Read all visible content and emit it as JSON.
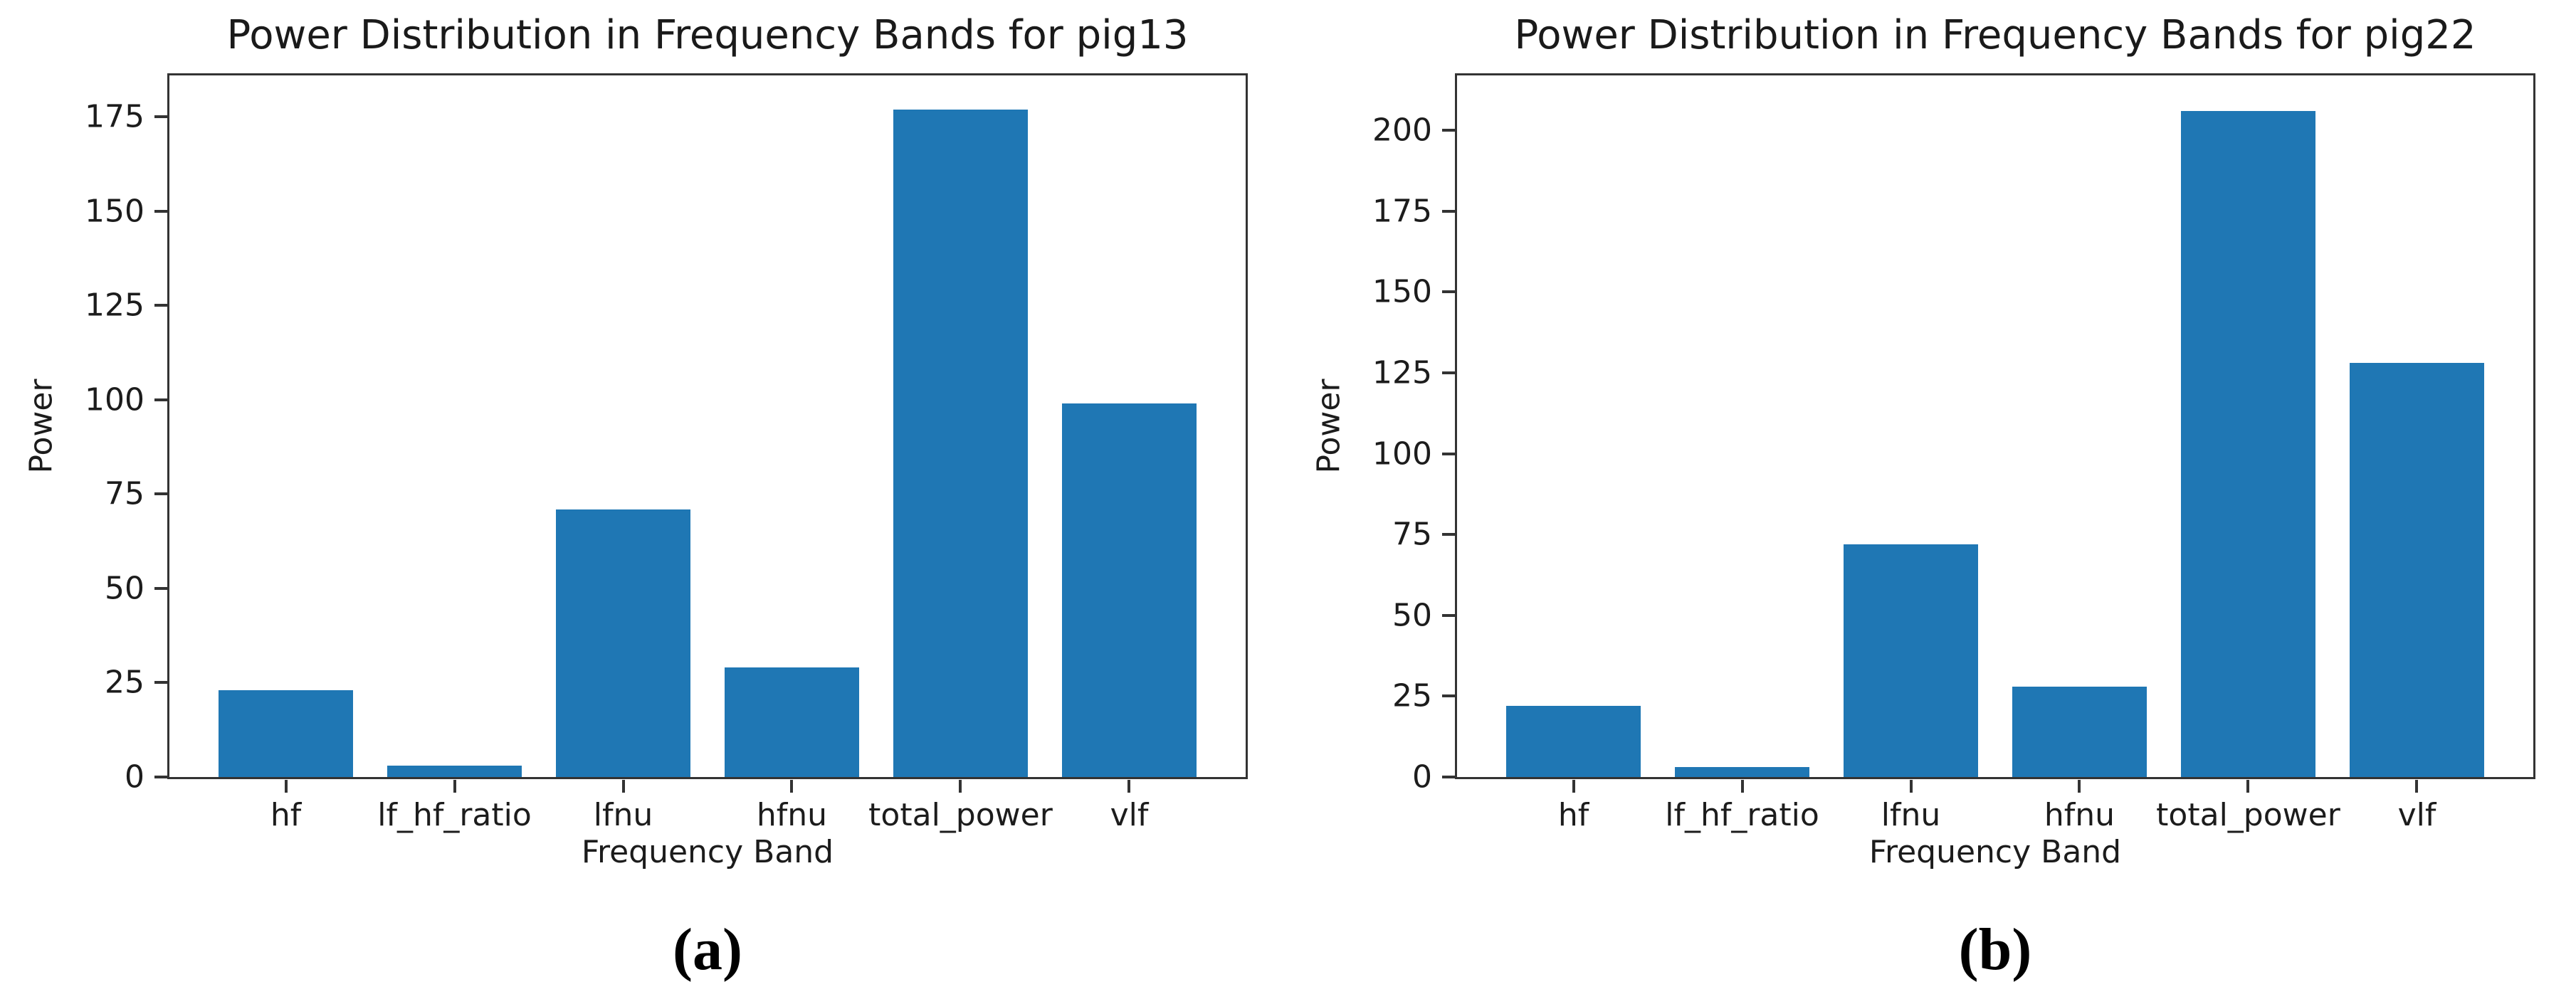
{
  "page": {
    "background": "#ffffff",
    "text_color": "#1c1c1c",
    "axis_color": "#333333"
  },
  "chart_data": [
    {
      "type": "bar",
      "title": "Power Distribution in Frequency Bands for pig13",
      "xlabel": "Frequency Band",
      "ylabel": "Power",
      "caption": "(a)",
      "categories": [
        "hf",
        "lf_hf_ratio",
        "lfnu",
        "hfnu",
        "total_power",
        "vlf"
      ],
      "values": [
        23,
        3,
        71,
        29,
        177,
        99
      ],
      "yticks": [
        0,
        25,
        50,
        75,
        100,
        125,
        150,
        175
      ],
      "ylim": [
        0,
        186
      ],
      "grid": false,
      "legend": false,
      "bar_color": "#1f77b4"
    },
    {
      "type": "bar",
      "title": "Power Distribution in Frequency Bands for pig22",
      "xlabel": "Frequency Band",
      "ylabel": "Power",
      "caption": "(b)",
      "categories": [
        "hf",
        "lf_hf_ratio",
        "lfnu",
        "hfnu",
        "total_power",
        "vlf"
      ],
      "values": [
        22,
        3,
        72,
        28,
        206,
        128
      ],
      "yticks": [
        0,
        25,
        50,
        75,
        100,
        125,
        150,
        175,
        200
      ],
      "ylim": [
        0,
        217
      ],
      "grid": false,
      "legend": false,
      "bar_color": "#1f77b4"
    }
  ]
}
